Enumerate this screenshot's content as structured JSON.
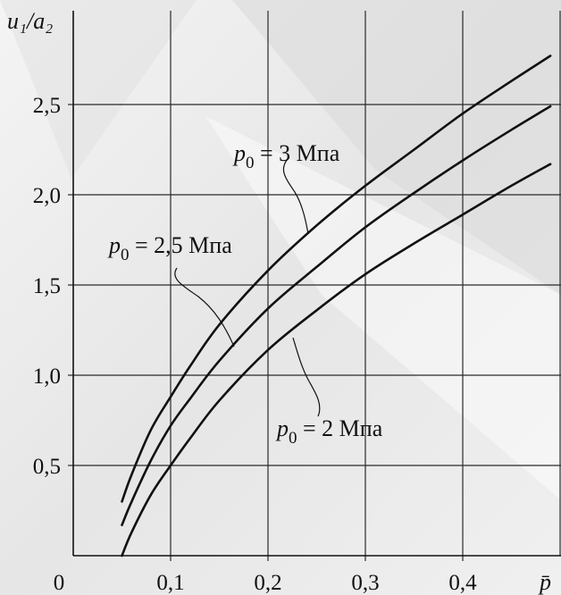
{
  "chart_data": {
    "type": "line",
    "title": "",
    "xlabel": "p̄",
    "ylabel": "u₁/a₂",
    "xlim": [
      0,
      0.5
    ],
    "ylim": [
      0,
      2.9
    ],
    "origin_label": "0",
    "x_ticks": [
      {
        "value": 0.1,
        "label": "0,1"
      },
      {
        "value": 0.2,
        "label": "0,2"
      },
      {
        "value": 0.3,
        "label": "0,3"
      },
      {
        "value": 0.4,
        "label": "0,4"
      }
    ],
    "y_ticks": [
      {
        "value": 0.5,
        "label": "0,5"
      },
      {
        "value": 1.0,
        "label": "1,0"
      },
      {
        "value": 1.5,
        "label": "1,5"
      },
      {
        "value": 2.0,
        "label": "2,0"
      },
      {
        "value": 2.5,
        "label": "2,5"
      }
    ],
    "grid": true,
    "series": [
      {
        "label": "p₀ = 3 Мпа",
        "x": [
          0.05,
          0.06,
          0.08,
          0.1,
          0.12,
          0.15,
          0.2,
          0.25,
          0.3,
          0.35,
          0.4,
          0.45,
          0.49
        ],
        "y": [
          0.3,
          0.45,
          0.7,
          0.88,
          1.05,
          1.28,
          1.58,
          1.83,
          2.05,
          2.25,
          2.45,
          2.63,
          2.77
        ]
      },
      {
        "label": "p₀ = 2,5 Мпа",
        "x": [
          0.05,
          0.06,
          0.08,
          0.1,
          0.12,
          0.15,
          0.2,
          0.25,
          0.3,
          0.35,
          0.4,
          0.45,
          0.49
        ],
        "y": [
          0.17,
          0.3,
          0.53,
          0.72,
          0.87,
          1.08,
          1.37,
          1.6,
          1.82,
          2.01,
          2.19,
          2.36,
          2.49
        ]
      },
      {
        "label": "p₀ = 2 Мпа",
        "x": [
          0.05,
          0.06,
          0.08,
          0.1,
          0.12,
          0.15,
          0.2,
          0.25,
          0.3,
          0.35,
          0.4,
          0.45,
          0.49
        ],
        "y": [
          0.0,
          0.13,
          0.34,
          0.5,
          0.65,
          0.86,
          1.14,
          1.36,
          1.56,
          1.73,
          1.89,
          2.05,
          2.17
        ]
      }
    ],
    "annotations": [
      {
        "series": 0,
        "parts": [
          "p",
          "0",
          " = 3 Мпа"
        ]
      },
      {
        "series": 1,
        "parts": [
          "p",
          "0",
          " = 2,5 Мпа"
        ]
      },
      {
        "series": 2,
        "parts": [
          "p",
          "0",
          " = 2 Мпа"
        ]
      }
    ],
    "colors": {
      "line": "#111111",
      "grid": "#2a2a2a",
      "background_light": "#f2f2f2",
      "background_mid": "#dedede"
    }
  }
}
